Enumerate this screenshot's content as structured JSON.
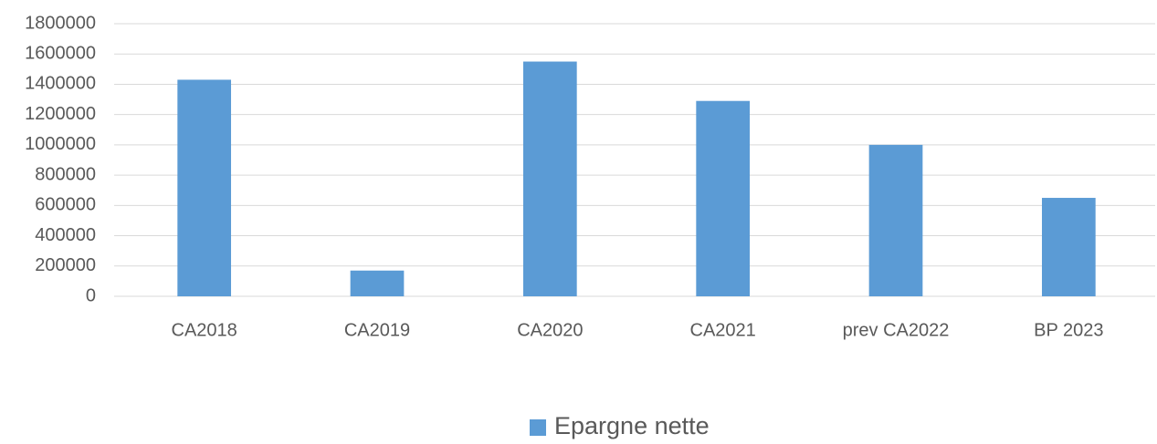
{
  "chart_data": {
    "type": "bar",
    "categories": [
      "CA2018",
      "CA2019",
      "CA2020",
      "CA2021",
      "prev CA2022",
      "BP 2023"
    ],
    "series": [
      {
        "name": "Epargne nette",
        "color": "#5b9bd5",
        "values": [
          1430000,
          170000,
          1550000,
          1290000,
          1000000,
          650000
        ]
      }
    ],
    "ylim": [
      0,
      1800000
    ],
    "yticks": [
      0,
      200000,
      400000,
      600000,
      800000,
      1000000,
      1200000,
      1400000,
      1600000,
      1800000
    ],
    "grid": true,
    "legend": "bottom"
  }
}
